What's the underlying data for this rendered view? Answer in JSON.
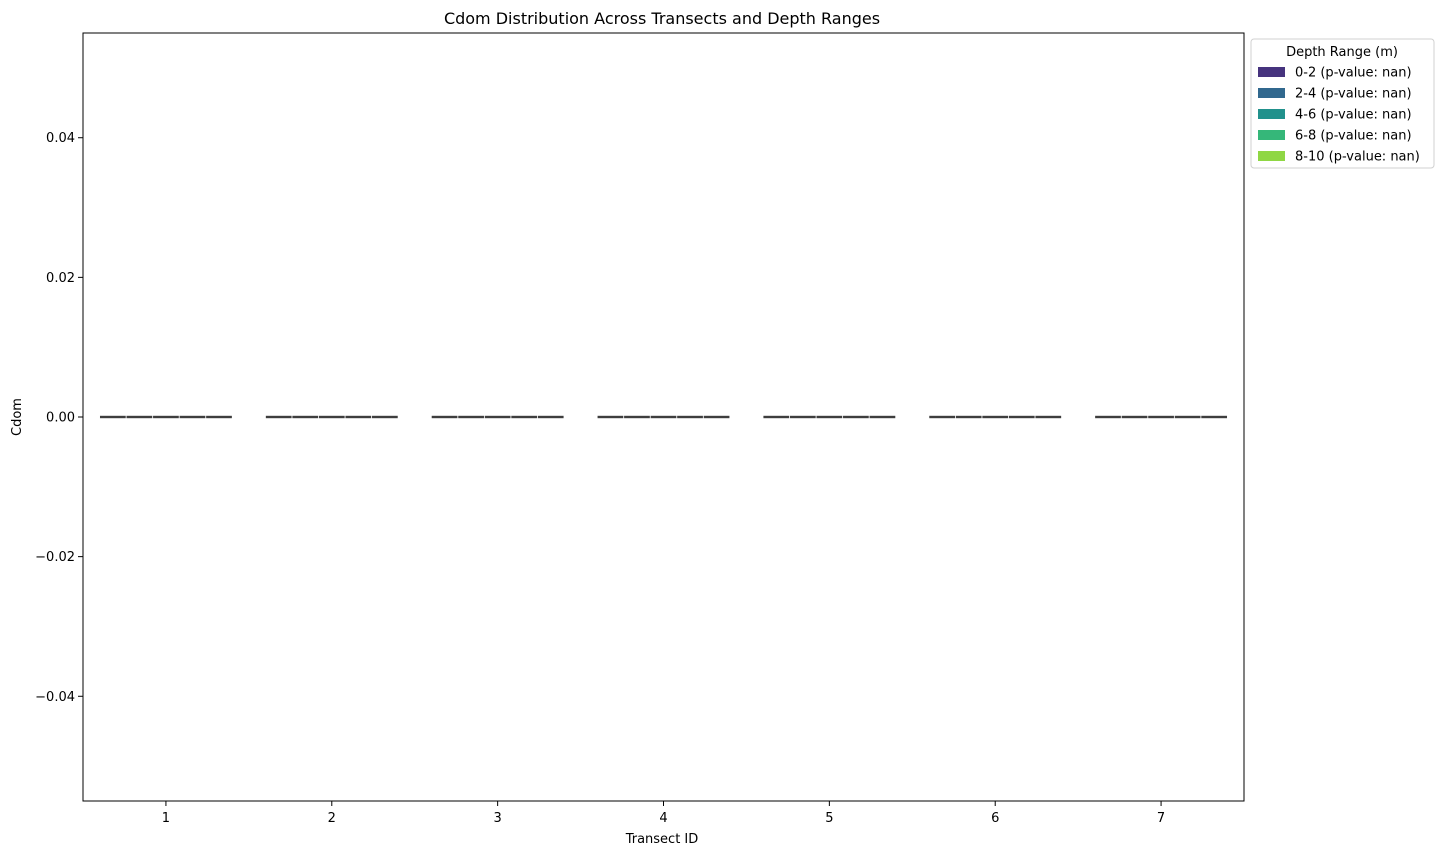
{
  "chart_data": {
    "type": "box",
    "title": "Cdom Distribution Across Transects and Depth Ranges",
    "xlabel": "Transect ID",
    "ylabel": "Cdom",
    "categories": [
      "1",
      "2",
      "3",
      "4",
      "5",
      "6",
      "7"
    ],
    "y_ticks": [
      0.04,
      0.02,
      0.0,
      -0.02,
      -0.04
    ],
    "y_tick_labels": [
      "0.04",
      "0.02",
      "0.00",
      "−0.02",
      "−0.04"
    ],
    "ylim": [
      -0.055,
      0.055
    ],
    "grid": false,
    "legend": {
      "title": "Depth Range (m)",
      "placement": "outside-top-right"
    },
    "series": [
      {
        "name": "0-2 (p-value: nan)",
        "color": "#46337e",
        "values": [
          0,
          0,
          0,
          0,
          0,
          0,
          0
        ]
      },
      {
        "name": "2-4 (p-value: nan)",
        "color": "#31688e",
        "values": [
          0,
          0,
          0,
          0,
          0,
          0,
          0
        ]
      },
      {
        "name": "4-6 (p-value: nan)",
        "color": "#21918c",
        "values": [
          0,
          0,
          0,
          0,
          0,
          0,
          0
        ]
      },
      {
        "name": "6-8 (p-value: nan)",
        "color": "#35b779",
        "values": [
          0,
          0,
          0,
          0,
          0,
          0,
          0
        ]
      },
      {
        "name": "8-10 (p-value: nan)",
        "color": "#8fd744",
        "values": [
          0,
          0,
          0,
          0,
          0,
          0,
          0
        ]
      }
    ]
  }
}
